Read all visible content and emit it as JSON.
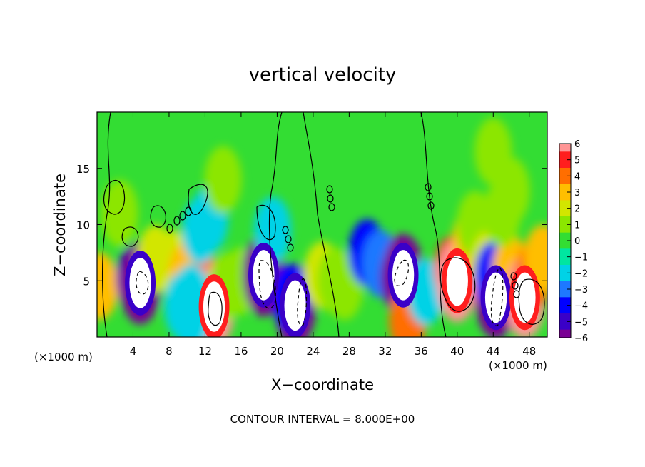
{
  "chart_data": {
    "type": "heatmap",
    "title": "vertical velocity",
    "xlabel": "X−coordinate",
    "ylabel": "Z−coordinate",
    "x_unit_left": "(×1000 m)",
    "x_unit_right": "(×1000 m)",
    "footer": "CONTOUR INTERVAL = 8.000E+00",
    "xlim": [
      0,
      50
    ],
    "ylim": [
      0,
      20
    ],
    "x_ticks": [
      4,
      8,
      12,
      16,
      20,
      24,
      28,
      32,
      36,
      40,
      44,
      48
    ],
    "y_ticks": [
      5,
      10,
      15
    ],
    "colorbar": {
      "range": [
        -6,
        6
      ],
      "tick_values": [
        6,
        5,
        4,
        3,
        2,
        1,
        0,
        -1,
        -2,
        -3,
        -4,
        -5,
        -6
      ],
      "tick_labels": [
        "6",
        "5",
        "4",
        "3",
        "2",
        "1",
        "0",
        "−1",
        "−2",
        "−3",
        "−4",
        "−5",
        "−6"
      ]
    },
    "colors": {
      "background_field": "#33dd33",
      "contour": "#000000",
      "saturated_high": "#ffffff",
      "saturated_low": "#ffffff"
    },
    "features": [
      {
        "x": 0.3,
        "z": 4.5,
        "w": 3
      },
      {
        "x": 4.2,
        "z": 5.2,
        "w": -5
      },
      {
        "x": 4.8,
        "z": 4.8,
        "w": -9
      },
      {
        "x": 6.5,
        "z": 7.0,
        "w": 2
      },
      {
        "x": 8.5,
        "z": 6.5,
        "w": 2
      },
      {
        "x": 10.0,
        "z": 5.5,
        "w": 3
      },
      {
        "x": 11.0,
        "z": 4.5,
        "w": 3
      },
      {
        "x": 12.2,
        "z": 4.2,
        "w": 4
      },
      {
        "x": 13.0,
        "z": 2.7,
        "w": 9
      },
      {
        "x": 10.5,
        "z": 3.5,
        "w": -2
      },
      {
        "x": 10.5,
        "z": 1.8,
        "w": -2
      },
      {
        "x": 9.5,
        "z": 2.8,
        "w": -1.5
      },
      {
        "x": 11.5,
        "z": 9.5,
        "w": -2
      },
      {
        "x": 12.5,
        "z": 10.5,
        "w": -1.5
      },
      {
        "x": 14.5,
        "z": 4.5,
        "w": 1.5
      },
      {
        "x": 16.0,
        "z": 5.0,
        "w": 1.5
      },
      {
        "x": 18.3,
        "z": 6.0,
        "w": -5
      },
      {
        "x": 18.5,
        "z": 5.5,
        "w": -9
      },
      {
        "x": 19.5,
        "z": 9.5,
        "w": -1.5
      },
      {
        "x": 22.0,
        "z": 2.8,
        "w": -9
      },
      {
        "x": 21.5,
        "z": 3.5,
        "w": -4
      },
      {
        "x": 25.0,
        "z": 5.5,
        "w": 2
      },
      {
        "x": 26.5,
        "z": 5.0,
        "w": 1.5
      },
      {
        "x": 27.5,
        "z": 4.5,
        "w": 1
      },
      {
        "x": 30.0,
        "z": 7.5,
        "w": -3.5
      },
      {
        "x": 31.5,
        "z": 6.5,
        "w": -3
      },
      {
        "x": 33.5,
        "z": 5.2,
        "w": -5
      },
      {
        "x": 34.0,
        "z": 5.5,
        "w": -9
      },
      {
        "x": 34.5,
        "z": 1.5,
        "w": 4
      },
      {
        "x": 36.5,
        "z": 4.0,
        "w": -1.5
      },
      {
        "x": 39.5,
        "z": 6.0,
        "w": 5
      },
      {
        "x": 40.0,
        "z": 5.0,
        "w": 9
      },
      {
        "x": 41.5,
        "z": 8.5,
        "w": 3
      },
      {
        "x": 42.0,
        "z": 10.0,
        "w": 1.5
      },
      {
        "x": 43.5,
        "z": 6.5,
        "w": 2
      },
      {
        "x": 44.3,
        "z": 3.5,
        "w": -9
      },
      {
        "x": 44.0,
        "z": 5.5,
        "w": -4
      },
      {
        "x": 46.0,
        "z": 6.0,
        "w": 3
      },
      {
        "x": 47.5,
        "z": 3.5,
        "w": 9
      },
      {
        "x": 48.5,
        "z": 5.5,
        "w": 4
      },
      {
        "x": 49.5,
        "z": 7.0,
        "w": 3
      },
      {
        "x": 44.0,
        "z": 16.5,
        "w": 1.2
      },
      {
        "x": 46.0,
        "z": 13.0,
        "w": 1.5
      },
      {
        "x": 45.0,
        "z": 11.0,
        "w": 1.5
      },
      {
        "x": 2.5,
        "z": 11.0,
        "w": 0.8
      },
      {
        "x": 14.0,
        "z": 14.0,
        "w": 0.6
      }
    ]
  }
}
